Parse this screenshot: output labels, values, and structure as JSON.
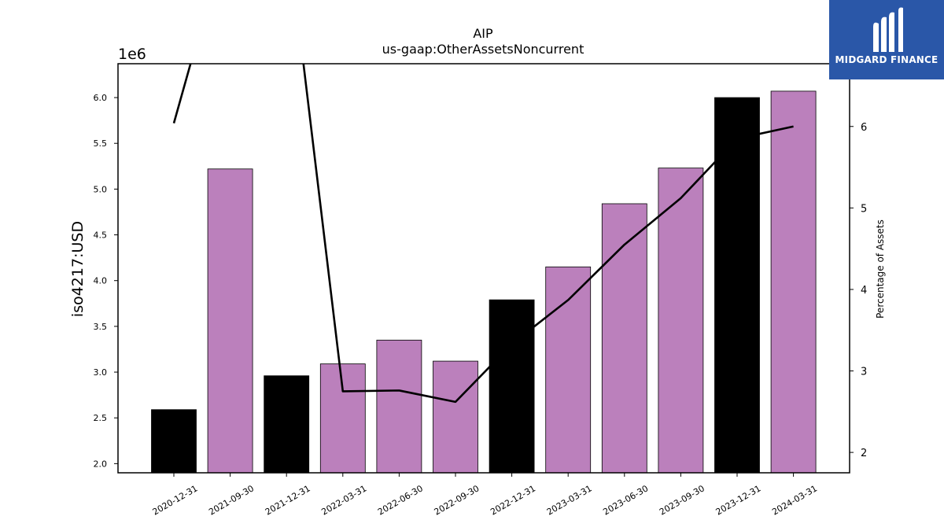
{
  "brand": {
    "name": "MIDGARD FINANCE",
    "logo_icon": "midgard-logo-icon",
    "background": "#2a57a8"
  },
  "chart_data": {
    "type": "bar",
    "title": "AIP",
    "subtitle": "us-gaap:OtherAssetsNoncurrent",
    "ylabel": "iso4217:USD",
    "y_offset_label": "1e6",
    "y2label": "Percentage of Assets",
    "categories": [
      "2020-12-31",
      "2021-09-30",
      "2021-12-31",
      "2022-03-31",
      "2022-06-30",
      "2022-09-30",
      "2022-12-31",
      "2023-03-31",
      "2023-06-30",
      "2023-09-30",
      "2023-12-31",
      "2024-03-31"
    ],
    "series": [
      {
        "values": [
          2.59,
          5.22,
          2.96,
          3.09,
          3.35,
          3.12,
          3.79,
          4.15,
          4.84,
          5.23,
          6.0,
          6.07
        ],
        "colors": [
          "#000000",
          "#bb80bc",
          "#000000",
          "#bb80bc",
          "#bb80bc",
          "#bb80bc",
          "#000000",
          "#bb80bc",
          "#bb80bc",
          "#bb80bc",
          "#000000",
          "#bb80bc"
        ]
      },
      {
        "type": "line",
        "axis": "right",
        "values": [
          6.04,
          8.5,
          8.5,
          2.75,
          2.76,
          2.62,
          3.33,
          3.87,
          4.55,
          5.12,
          5.85,
          6.0
        ],
        "color": "#000000"
      }
    ],
    "ylim": [
      1.9,
      6.37
    ],
    "y_ticks": [
      "2.0",
      "2.5",
      "3.0",
      "3.5",
      "4.0",
      "4.5",
      "5.0",
      "5.5",
      "6.0"
    ],
    "y2lim": [
      1.75,
      6.77
    ],
    "y2_ticks": [
      "2",
      "3",
      "4",
      "5",
      "6"
    ],
    "grid": false,
    "legend": "none"
  }
}
